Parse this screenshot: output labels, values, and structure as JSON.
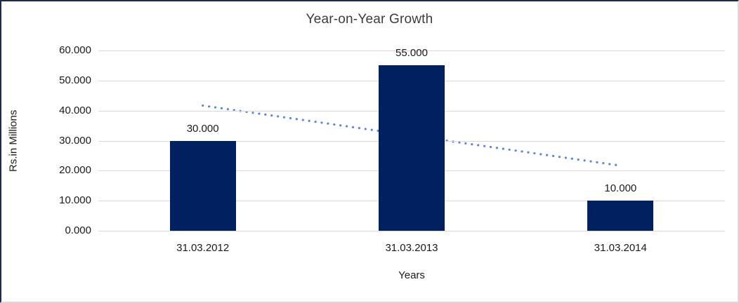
{
  "chart_data": {
    "type": "bar",
    "title": "Year-on-Year Growth",
    "categories": [
      "31.03.2012",
      "31.03.2013",
      "31.03.2014"
    ],
    "values": [
      30,
      55,
      10
    ],
    "data_labels": [
      "30.000",
      "55.000",
      "10.000"
    ],
    "xlabel": "Years",
    "ylabel": "Rs.in Millions",
    "ylim": [
      0,
      60
    ],
    "ytick_step": 10,
    "ytick_labels": [
      "0.000",
      "10.000",
      "20.000",
      "30.000",
      "40.000",
      "50.000",
      "60.000"
    ],
    "grid": true,
    "legend": "none",
    "bar_color": "#002060",
    "gridline_color": "#d9d9d9",
    "trendline": {
      "type": "linear",
      "style": "dotted",
      "color": "#5b8dd0",
      "start_value": 41.667,
      "end_value": 21.667
    }
  }
}
